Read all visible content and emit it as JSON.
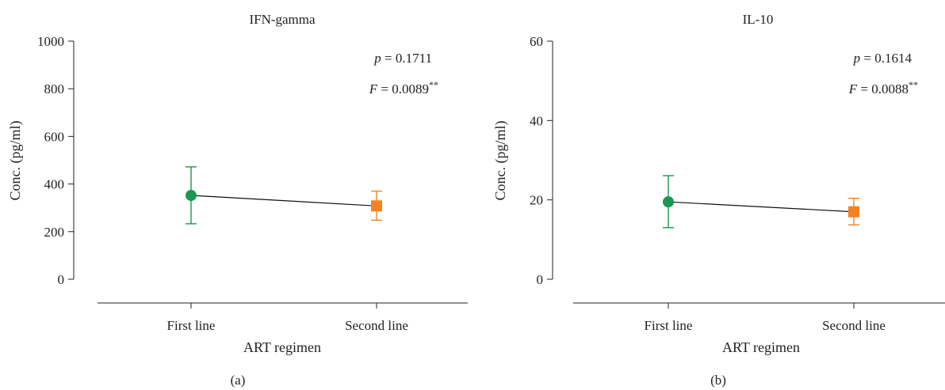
{
  "chart_data": [
    {
      "type": "line",
      "title": "IFN-gamma",
      "panel_label": "(a)",
      "xlabel": "ART regimen",
      "ylabel": "Conc. (pg/ml)",
      "ylim": [
        0,
        1000
      ],
      "yticks": [
        0,
        200,
        400,
        600,
        800,
        1000
      ],
      "categories": [
        "First line",
        "Second line"
      ],
      "points": [
        {
          "category": "First line",
          "mean": 352,
          "lower": 233,
          "upper": 472,
          "marker": "circle",
          "color": "#1a9850"
        },
        {
          "category": "Second line",
          "mean": 308,
          "lower": 248,
          "upper": 370,
          "marker": "square",
          "color": "#f58220"
        }
      ],
      "annotations": {
        "p_symbol": "p",
        "p_value": " = 0.1711",
        "f_symbol": "F",
        "f_value": " = 0.0089",
        "f_sup": "**"
      },
      "grid": false
    },
    {
      "type": "line",
      "title": "IL-10",
      "panel_label": "(b)",
      "xlabel": "ART regimen",
      "ylabel": "Conc. (pg/ml)",
      "ylim": [
        0,
        60
      ],
      "yticks": [
        0,
        20,
        40,
        60
      ],
      "categories": [
        "First line",
        "Second line"
      ],
      "points": [
        {
          "category": "First line",
          "mean": 19.5,
          "lower": 13.0,
          "upper": 26.1,
          "marker": "circle",
          "color": "#1a9850"
        },
        {
          "category": "Second line",
          "mean": 17.0,
          "lower": 13.7,
          "upper": 20.4,
          "marker": "square",
          "color": "#f58220"
        }
      ],
      "annotations": {
        "p_symbol": "p",
        "p_value": " = 0.1614",
        "f_symbol": "F",
        "f_value": " = 0.0088",
        "f_sup": "**"
      },
      "grid": false
    }
  ]
}
